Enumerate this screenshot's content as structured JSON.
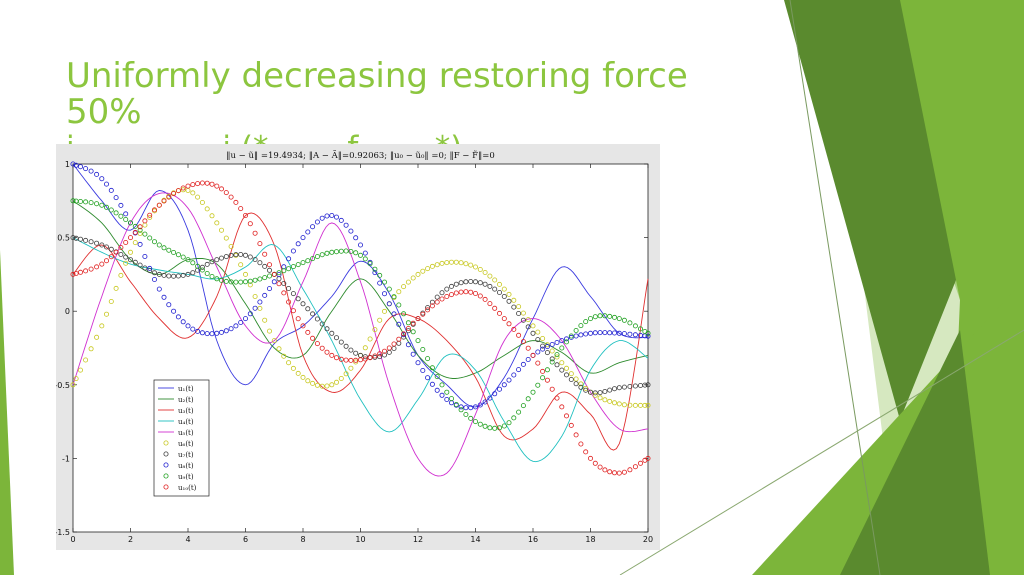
{
  "slide": {
    "title_line1": "Uniformly decreasing restoring force",
    "title_line2": "50%",
    "subtitle_partial": "i ... ... ... ..i (*... ... f... ... *)"
  },
  "colors": {
    "title": "#8cc63f",
    "decor_dark": "#5a8a2e",
    "decor_mid": "#7cb53a",
    "decor_light": "#a7d07a",
    "decor_pale": "#d6e8c0"
  },
  "chart_data": {
    "type": "line",
    "title": "‖u − ũ‖ =19.4934; ‖A − Ã‖=0.92063; ‖u₀ − ũ₀‖ =0; ‖F − F̃‖=0",
    "xlabel": "",
    "ylabel": "",
    "xlim": [
      0,
      20
    ],
    "ylim": [
      -1.5,
      1
    ],
    "xticks": [
      "0",
      "2",
      "4",
      "6",
      "8",
      "10",
      "12",
      "14",
      "16",
      "18",
      "20"
    ],
    "yticks": [
      "1",
      "0.5",
      "0",
      "-0.5",
      "-1",
      "-1.5"
    ],
    "grid": false,
    "legend_position": "lower-left",
    "series": [
      {
        "name": "u₁(t)",
        "color": "#3a3adf",
        "style": "line",
        "x": [
          0,
          1,
          2,
          3,
          4,
          5,
          6,
          7,
          8,
          9,
          10,
          11,
          12,
          13,
          14,
          15,
          16,
          17,
          18,
          19,
          20
        ],
        "y": [
          1.0,
          0.75,
          0.55,
          0.82,
          0.55,
          -0.2,
          -0.5,
          -0.22,
          -0.1,
          0.1,
          0.34,
          0.12,
          -0.3,
          -0.5,
          -0.65,
          -0.45,
          -0.05,
          0.3,
          0.1,
          -0.15,
          -0.18
        ]
      },
      {
        "name": "u₂(t)",
        "color": "#2e8b2e",
        "style": "line",
        "x": [
          0,
          1,
          2,
          3,
          4,
          5,
          6,
          7,
          8,
          9,
          10,
          11,
          12,
          13,
          14,
          15,
          16,
          17,
          18,
          19,
          20
        ],
        "y": [
          0.75,
          0.6,
          0.35,
          0.25,
          0.35,
          0.32,
          0.05,
          -0.25,
          -0.3,
          0.0,
          0.22,
          0.0,
          -0.3,
          -0.45,
          -0.42,
          -0.3,
          -0.2,
          -0.28,
          -0.42,
          -0.35,
          -0.3
        ]
      },
      {
        "name": "u₃(t)",
        "color": "#e03030",
        "style": "line",
        "x": [
          0,
          1,
          2,
          3,
          4,
          5,
          6,
          7,
          8,
          9,
          10,
          11,
          12,
          13,
          14,
          15,
          16,
          17,
          18,
          19,
          20
        ],
        "y": [
          0.25,
          0.45,
          0.2,
          -0.05,
          -0.18,
          0.1,
          0.65,
          0.45,
          -0.3,
          -0.55,
          -0.4,
          -0.05,
          -0.05,
          -0.2,
          -0.45,
          -0.85,
          -0.8,
          -0.55,
          -0.7,
          -0.9,
          0.22
        ]
      },
      {
        "name": "u₄(t)",
        "color": "#20c0c0",
        "style": "line",
        "x": [
          0,
          1,
          2,
          3,
          4,
          5,
          6,
          7,
          8,
          9,
          10,
          11,
          12,
          13,
          14,
          15,
          16,
          17,
          18,
          19,
          20
        ],
        "y": [
          0.5,
          0.4,
          0.32,
          0.28,
          0.25,
          0.22,
          0.3,
          0.45,
          0.15,
          -0.2,
          -0.6,
          -0.82,
          -0.6,
          -0.3,
          -0.4,
          -0.75,
          -1.02,
          -0.85,
          -0.4,
          -0.2,
          -0.32
        ]
      },
      {
        "name": "u₅(t)",
        "color": "#d030d0",
        "style": "line",
        "x": [
          0,
          1,
          2,
          3,
          4,
          5,
          6,
          7,
          8,
          9,
          10,
          11,
          12,
          13,
          14,
          15,
          16,
          17,
          18,
          19,
          20
        ],
        "y": [
          -0.5,
          0.1,
          0.6,
          0.8,
          0.7,
          0.3,
          -0.1,
          -0.2,
          0.2,
          0.6,
          0.2,
          -0.5,
          -1.0,
          -1.1,
          -0.7,
          -0.2,
          -0.05,
          -0.2,
          -0.55,
          -0.8,
          -0.8
        ]
      },
      {
        "name": "u₆(t)",
        "color": "#c8c820",
        "style": "markers",
        "x": [
          0,
          1,
          2,
          3,
          4,
          5,
          6,
          7,
          8,
          9,
          10,
          11,
          12,
          13,
          14,
          15,
          16,
          17,
          18,
          19,
          20
        ],
        "y": [
          -0.5,
          -0.1,
          0.4,
          0.72,
          0.82,
          0.6,
          0.25,
          -0.2,
          -0.45,
          -0.5,
          -0.3,
          0.05,
          0.25,
          0.33,
          0.3,
          0.15,
          -0.1,
          -0.35,
          -0.55,
          -0.63,
          -0.64
        ]
      },
      {
        "name": "u₇(t)",
        "color": "#404040",
        "style": "markers",
        "x": [
          0,
          1,
          2,
          3,
          4,
          5,
          6,
          7,
          8,
          9,
          10,
          11,
          12,
          13,
          14,
          15,
          16,
          17,
          18,
          19,
          20
        ],
        "y": [
          0.5,
          0.45,
          0.35,
          0.25,
          0.25,
          0.35,
          0.38,
          0.25,
          0.05,
          -0.15,
          -0.3,
          -0.28,
          -0.05,
          0.15,
          0.2,
          0.1,
          -0.15,
          -0.4,
          -0.55,
          -0.52,
          -0.5
        ]
      },
      {
        "name": "u₈(t)",
        "color": "#2020d0",
        "style": "markers",
        "x": [
          0,
          1,
          2,
          3,
          4,
          5,
          6,
          7,
          8,
          9,
          10,
          11,
          12,
          13,
          14,
          15,
          16,
          17,
          18,
          19,
          20
        ],
        "y": [
          1.0,
          0.9,
          0.6,
          0.15,
          -0.1,
          -0.15,
          -0.05,
          0.2,
          0.5,
          0.65,
          0.45,
          0.05,
          -0.35,
          -0.6,
          -0.65,
          -0.5,
          -0.3,
          -0.2,
          -0.15,
          -0.15,
          -0.17
        ]
      },
      {
        "name": "u₉(t)",
        "color": "#20a020",
        "style": "markers",
        "x": [
          0,
          1,
          2,
          3,
          4,
          5,
          6,
          7,
          8,
          9,
          10,
          11,
          12,
          13,
          14,
          15,
          16,
          17,
          18,
          19,
          20
        ],
        "y": [
          0.75,
          0.72,
          0.6,
          0.45,
          0.35,
          0.22,
          0.2,
          0.25,
          0.33,
          0.4,
          0.38,
          0.15,
          -0.2,
          -0.55,
          -0.75,
          -0.78,
          -0.55,
          -0.25,
          -0.05,
          -0.05,
          -0.15
        ]
      },
      {
        "name": "u₁₀(t)",
        "color": "#e02020",
        "style": "markers",
        "x": [
          0,
          1,
          2,
          3,
          4,
          5,
          6,
          7,
          8,
          9,
          10,
          11,
          12,
          13,
          14,
          15,
          16,
          17,
          18,
          19,
          20
        ],
        "y": [
          0.25,
          0.32,
          0.5,
          0.72,
          0.85,
          0.85,
          0.65,
          0.25,
          -0.1,
          -0.3,
          -0.33,
          -0.25,
          -0.05,
          0.1,
          0.12,
          -0.05,
          -0.3,
          -0.65,
          -1.0,
          -1.1,
          -1.0
        ]
      }
    ]
  }
}
